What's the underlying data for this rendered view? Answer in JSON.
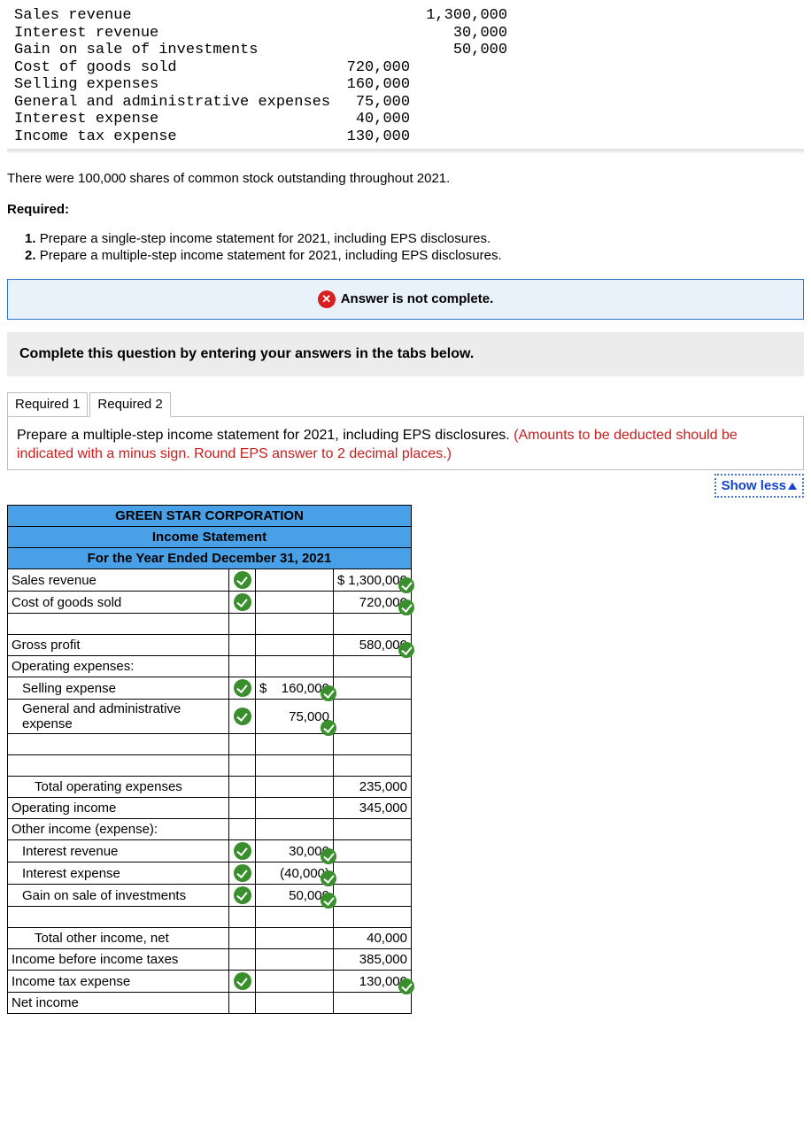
{
  "given_data": {
    "rows": [
      {
        "label": "Sales revenue",
        "c1": "",
        "c2": "1,300,000"
      },
      {
        "label": "Interest revenue",
        "c1": "",
        "c2": "30,000"
      },
      {
        "label": "Gain on sale of investments",
        "c1": "",
        "c2": "50,000"
      },
      {
        "label": "Cost of goods sold",
        "c1": "720,000",
        "c2": ""
      },
      {
        "label": "Selling expenses",
        "c1": "160,000",
        "c2": ""
      },
      {
        "label": "General and administrative expenses",
        "c1": "75,000",
        "c2": ""
      },
      {
        "label": "Interest expense",
        "c1": "40,000",
        "c2": ""
      },
      {
        "label": "Income tax expense",
        "c1": "130,000",
        "c2": ""
      }
    ]
  },
  "narrative": "There were 100,000 shares of common stock outstanding throughout 2021.",
  "required_label": "Required:",
  "requirements": [
    "Prepare a single-step income statement for 2021, including EPS disclosures.",
    "Prepare a multiple-step income statement for 2021, including EPS disclosures."
  ],
  "alert_text": "Answer is not complete.",
  "instruction_text": "Complete this question by entering your answers in the tabs below.",
  "tabs": [
    "Required 1",
    "Required 2"
  ],
  "prompt_main": "Prepare a multiple-step income statement for 2021, including EPS disclosures. ",
  "prompt_red": "(Amounts to be deducted should be indicated with a minus sign. Round EPS answer to 2 decimal places.)",
  "show_less": "Show less",
  "statement": {
    "h1": "GREEN STAR CORPORATION",
    "h2": "Income Statement",
    "h3": "For the Year Ended December 31, 2021",
    "header_bg": "#4aa0e6",
    "rows": [
      {
        "label": "Sales revenue",
        "indent": 0,
        "chk1": true,
        "v1": "",
        "v1chk": false,
        "v2": "$ 1,300,000",
        "v2chk": true,
        "dollar2": true
      },
      {
        "label": "Cost of goods sold",
        "indent": 0,
        "chk1": true,
        "v1": "",
        "v1chk": false,
        "v2": "720,000",
        "v2chk": true
      },
      {
        "label": "",
        "indent": 0
      },
      {
        "label": "Gross profit",
        "indent": 0,
        "v2": "580,000",
        "v2chk": true
      },
      {
        "label": "Operating expenses:",
        "indent": 0
      },
      {
        "label": "Selling expense",
        "indent": 1,
        "chk1": true,
        "v1": "$ 160,000",
        "v1chk": true,
        "dollar1": true
      },
      {
        "label": "General and administrative expense",
        "indent": 1,
        "chk1": true,
        "v1": "75,000",
        "v1chk": true
      },
      {
        "label": "",
        "indent": 0
      },
      {
        "label": "",
        "indent": 0
      },
      {
        "label": "Total operating expenses",
        "indent": 2,
        "v2": "235,000"
      },
      {
        "label": "Operating income",
        "indent": 0,
        "v2": "345,000"
      },
      {
        "label": "Other income (expense):",
        "indent": 0
      },
      {
        "label": "Interest revenue",
        "indent": 1,
        "chk1": true,
        "v1": "30,000",
        "v1chk": true
      },
      {
        "label": "Interest expense",
        "indent": 1,
        "chk1": true,
        "v1": "(40,000)",
        "v1chk": true
      },
      {
        "label": "Gain on sale of investments",
        "indent": 1,
        "chk1": true,
        "v1": "50,000",
        "v1chk": true
      },
      {
        "label": "",
        "indent": 0
      },
      {
        "label": "Total other income, net",
        "indent": 2,
        "v2": "40,000"
      },
      {
        "label": "Income before income taxes",
        "indent": 0,
        "v2": "385,000"
      },
      {
        "label": "Income tax expense",
        "indent": 0,
        "chk1": true,
        "v2": "130,000",
        "v2chk": true
      },
      {
        "label": "Net income",
        "indent": 0
      }
    ]
  }
}
